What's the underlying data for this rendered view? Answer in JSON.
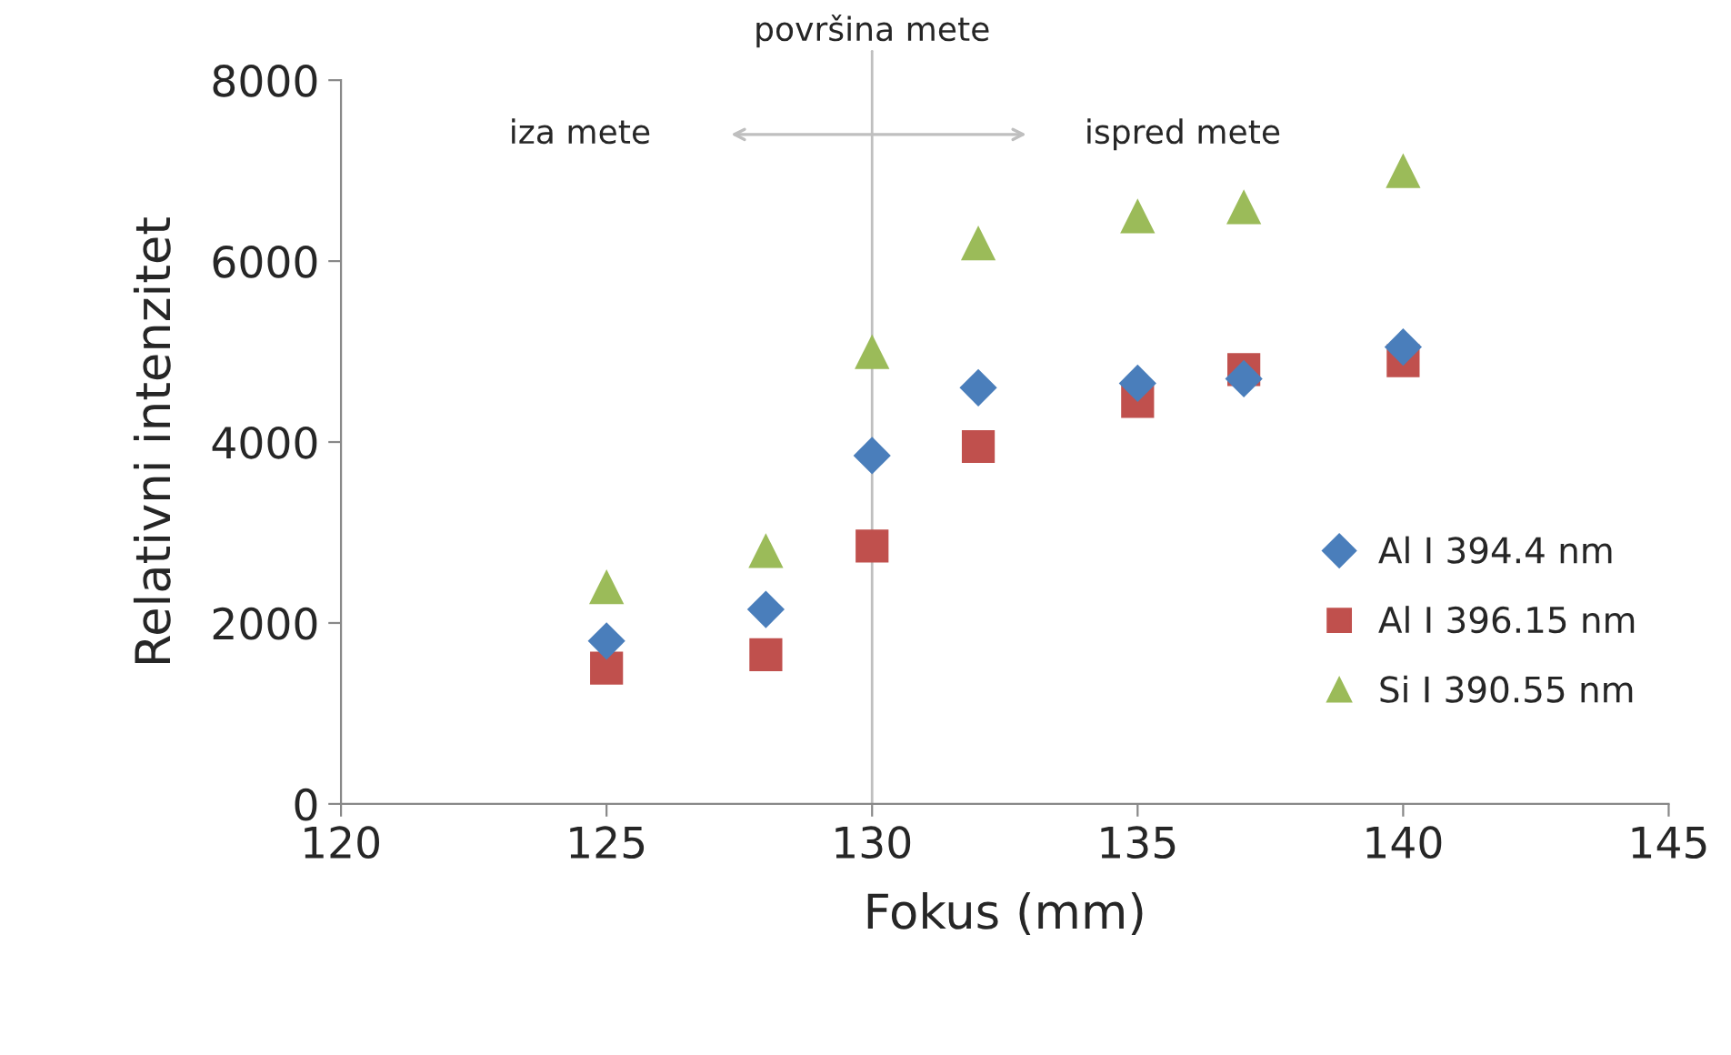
{
  "chart_data": {
    "type": "scatter",
    "xlabel": "Fokus (mm)",
    "ylabel": "Relativni intenzitet",
    "x": [
      125,
      128,
      130,
      132,
      135,
      137,
      140
    ],
    "series": [
      {
        "name": "Al I 394.4 nm",
        "color": "#4a7ebb",
        "marker": "diamond",
        "values": [
          1800,
          2150,
          3850,
          4600,
          4650,
          4700,
          5050
        ]
      },
      {
        "name": "Al I 396.15 nm",
        "color": "#c0504d",
        "marker": "square",
        "values": [
          1500,
          1650,
          2850,
          3950,
          4450,
          4800,
          4900
        ]
      },
      {
        "name": "Si I 390.55 nm",
        "color": "#9bbb59",
        "marker": "triangle",
        "values": [
          2400,
          2800,
          5000,
          6200,
          6500,
          6600,
          7000
        ]
      }
    ],
    "xlim": [
      120,
      145
    ],
    "xticks": [
      120,
      125,
      130,
      135,
      140,
      145
    ],
    "ylim": [
      0,
      8000
    ],
    "yticks": [
      0,
      2000,
      4000,
      6000,
      8000
    ],
    "grid": false,
    "legend": "right",
    "ref_lines": [
      {
        "axis": "x",
        "value": 130,
        "label": "površina mete",
        "color": "#bfbfbf"
      }
    ],
    "annotations": [
      "iza mete",
      "ispred mete"
    ]
  }
}
